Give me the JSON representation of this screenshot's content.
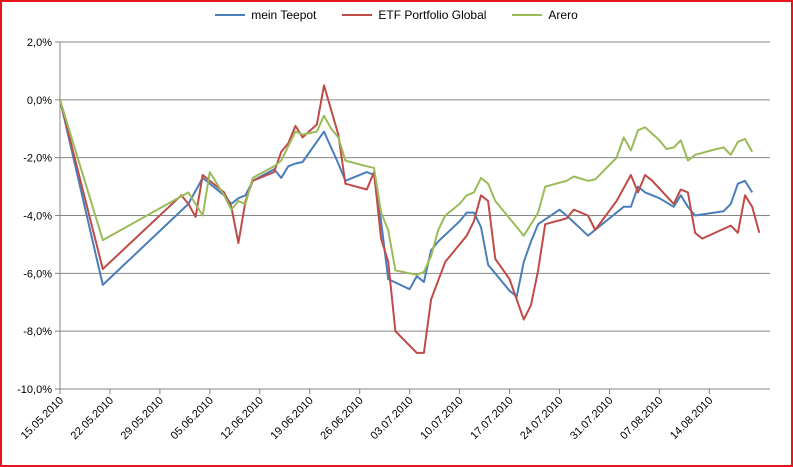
{
  "chart_data": {
    "type": "line",
    "title": "",
    "xlabel": "",
    "ylabel": "",
    "ylim": [
      -10,
      2
    ],
    "yticks": [
      {
        "v": 2,
        "label": "2,0%"
      },
      {
        "v": 0,
        "label": "0,0%"
      },
      {
        "v": -2,
        "label": "-2,0%"
      },
      {
        "v": -4,
        "label": "-4,0%"
      },
      {
        "v": -6,
        "label": "-6,0%"
      },
      {
        "v": -8,
        "label": "-8,0%"
      },
      {
        "v": -10,
        "label": "-10,0%"
      }
    ],
    "x_start": "15.05.2010",
    "x_end": "21.08.2010",
    "xticks": [
      "15.05.2010",
      "22.05.2010",
      "29.05.2010",
      "05.06.2010",
      "12.06.2010",
      "19.06.2010",
      "26.06.2010",
      "03.07.2010",
      "10.07.2010",
      "17.07.2010",
      "24.07.2010",
      "31.07.2010",
      "07.08.2010",
      "14.08.2010"
    ],
    "grid": "horizontal",
    "legend_position": "top",
    "series": [
      {
        "name": "mein Teepot",
        "color": "#4a7ebb",
        "points": [
          [
            "15.05.2010",
            0
          ],
          [
            "21.05.2010",
            -6.4
          ],
          [
            "02.06.2010",
            -3.6
          ],
          [
            "04.06.2010",
            -2.7
          ],
          [
            "07.06.2010",
            -3.3
          ],
          [
            "08.06.2010",
            -3.6
          ],
          [
            "09.06.2010",
            -3.4
          ],
          [
            "10.06.2010",
            -3.3
          ],
          [
            "11.06.2010",
            -2.8
          ],
          [
            "14.06.2010",
            -2.4
          ],
          [
            "15.06.2010",
            -2.7
          ],
          [
            "16.06.2010",
            -2.3
          ],
          [
            "17.06.2010",
            -2.2
          ],
          [
            "18.06.2010",
            -2.15
          ],
          [
            "21.06.2010",
            -1.1
          ],
          [
            "23.06.2010",
            -2.2
          ],
          [
            "24.06.2010",
            -2.8
          ],
          [
            "27.06.2010",
            -2.5
          ],
          [
            "28.06.2010",
            -2.6
          ],
          [
            "29.06.2010",
            -4.2
          ],
          [
            "30.06.2010",
            -6.2
          ],
          [
            "03.07.2010",
            -6.55
          ],
          [
            "04.07.2010",
            -6.1
          ],
          [
            "05.07.2010",
            -6.3
          ],
          [
            "06.07.2010",
            -5.2
          ],
          [
            "07.07.2010",
            -4.9
          ],
          [
            "10.07.2010",
            -4.2
          ],
          [
            "11.07.2010",
            -3.9
          ],
          [
            "12.07.2010",
            -3.9
          ],
          [
            "13.07.2010",
            -4.4
          ],
          [
            "14.07.2010",
            -5.7
          ],
          [
            "17.07.2010",
            -6.6
          ],
          [
            "18.07.2010",
            -6.8
          ],
          [
            "19.07.2010",
            -5.6
          ],
          [
            "20.07.2010",
            -4.9
          ],
          [
            "21.07.2010",
            -4.3
          ],
          [
            "24.07.2010",
            -3.8
          ],
          [
            "25.07.2010",
            -4.0
          ],
          [
            "28.07.2010",
            -4.7
          ],
          [
            "31.07.2010",
            -4.1
          ],
          [
            "02.08.2010",
            -3.7
          ],
          [
            "03.08.2010",
            -3.7
          ],
          [
            "04.08.2010",
            -3.0
          ],
          [
            "05.08.2010",
            -3.2
          ],
          [
            "07.08.2010",
            -3.4
          ],
          [
            "09.08.2010",
            -3.7
          ],
          [
            "10.08.2010",
            -3.3
          ],
          [
            "11.08.2010",
            -3.7
          ],
          [
            "12.08.2010",
            -4.0
          ],
          [
            "16.08.2010",
            -3.85
          ],
          [
            "17.08.2010",
            -3.6
          ],
          [
            "18.08.2010",
            -2.9
          ],
          [
            "19.08.2010",
            -2.8
          ],
          [
            "20.08.2010",
            -3.2
          ]
        ]
      },
      {
        "name": "ETF Portfolio Global",
        "color": "#be4b48",
        "points": [
          [
            "15.05.2010",
            0
          ],
          [
            "21.05.2010",
            -5.85
          ],
          [
            "01.06.2010",
            -3.3
          ],
          [
            "02.06.2010",
            -3.6
          ],
          [
            "03.06.2010",
            -4.05
          ],
          [
            "04.06.2010",
            -2.6
          ],
          [
            "07.06.2010",
            -3.2
          ],
          [
            "08.06.2010",
            -3.7
          ],
          [
            "09.06.2010",
            -4.95
          ],
          [
            "10.06.2010",
            -3.5
          ],
          [
            "11.06.2010",
            -2.8
          ],
          [
            "14.06.2010",
            -2.5
          ],
          [
            "15.06.2010",
            -1.8
          ],
          [
            "16.06.2010",
            -1.5
          ],
          [
            "17.06.2010",
            -0.9
          ],
          [
            "18.06.2010",
            -1.3
          ],
          [
            "20.06.2010",
            -0.85
          ],
          [
            "21.06.2010",
            0.5
          ],
          [
            "23.06.2010",
            -1.2
          ],
          [
            "24.06.2010",
            -2.9
          ],
          [
            "27.06.2010",
            -3.1
          ],
          [
            "28.06.2010",
            -2.5
          ],
          [
            "29.06.2010",
            -4.8
          ],
          [
            "30.06.2010",
            -5.6
          ],
          [
            "01.07.2010",
            -8.0
          ],
          [
            "04.07.2010",
            -8.75
          ],
          [
            "05.07.2010",
            -8.75
          ],
          [
            "06.07.2010",
            -6.9
          ],
          [
            "08.07.2010",
            -5.6
          ],
          [
            "10.07.2010",
            -5.0
          ],
          [
            "11.07.2010",
            -4.7
          ],
          [
            "12.07.2010",
            -4.2
          ],
          [
            "13.07.2010",
            -3.3
          ],
          [
            "14.07.2010",
            -3.5
          ],
          [
            "15.07.2010",
            -5.5
          ],
          [
            "17.07.2010",
            -6.2
          ],
          [
            "19.07.2010",
            -7.6
          ],
          [
            "20.07.2010",
            -7.1
          ],
          [
            "21.07.2010",
            -5.9
          ],
          [
            "22.07.2010",
            -4.3
          ],
          [
            "25.07.2010",
            -4.1
          ],
          [
            "26.07.2010",
            -3.8
          ],
          [
            "28.07.2010",
            -4.0
          ],
          [
            "29.07.2010",
            -4.5
          ],
          [
            "01.08.2010",
            -3.5
          ],
          [
            "03.08.2010",
            -2.6
          ],
          [
            "04.08.2010",
            -3.2
          ],
          [
            "05.08.2010",
            -2.6
          ],
          [
            "06.08.2010",
            -2.8
          ],
          [
            "09.08.2010",
            -3.6
          ],
          [
            "10.08.2010",
            -3.1
          ],
          [
            "11.08.2010",
            -3.2
          ],
          [
            "12.08.2010",
            -4.6
          ],
          [
            "13.08.2010",
            -4.8
          ],
          [
            "17.08.2010",
            -4.35
          ],
          [
            "18.08.2010",
            -4.6
          ],
          [
            "19.08.2010",
            -3.3
          ],
          [
            "20.08.2010",
            -3.7
          ],
          [
            "21.08.2010",
            -4.6
          ]
        ]
      },
      {
        "name": "Arero",
        "color": "#9bbb59",
        "points": [
          [
            "15.05.2010",
            0
          ],
          [
            "21.05.2010",
            -4.85
          ],
          [
            "02.06.2010",
            -3.2
          ],
          [
            "04.06.2010",
            -4.0
          ],
          [
            "05.06.2010",
            -2.5
          ],
          [
            "07.06.2010",
            -3.3
          ],
          [
            "08.06.2010",
            -3.8
          ],
          [
            "09.06.2010",
            -3.5
          ],
          [
            "10.06.2010",
            -3.6
          ],
          [
            "11.06.2010",
            -2.7
          ],
          [
            "14.06.2010",
            -2.3
          ],
          [
            "15.06.2010",
            -2.1
          ],
          [
            "16.06.2010",
            -1.6
          ],
          [
            "17.06.2010",
            -1.1
          ],
          [
            "18.06.2010",
            -1.2
          ],
          [
            "20.06.2010",
            -1.1
          ],
          [
            "21.06.2010",
            -0.55
          ],
          [
            "22.06.2010",
            -1.0
          ],
          [
            "23.06.2010",
            -1.3
          ],
          [
            "24.06.2010",
            -2.1
          ],
          [
            "27.06.2010",
            -2.3
          ],
          [
            "28.06.2010",
            -2.35
          ],
          [
            "29.06.2010",
            -3.9
          ],
          [
            "30.06.2010",
            -4.5
          ],
          [
            "01.07.2010",
            -5.9
          ],
          [
            "04.07.2010",
            -6.05
          ],
          [
            "05.07.2010",
            -5.95
          ],
          [
            "06.07.2010",
            -5.4
          ],
          [
            "07.07.2010",
            -4.5
          ],
          [
            "08.07.2010",
            -4.0
          ],
          [
            "10.07.2010",
            -3.6
          ],
          [
            "11.07.2010",
            -3.3
          ],
          [
            "12.07.2010",
            -3.2
          ],
          [
            "13.07.2010",
            -2.7
          ],
          [
            "14.07.2010",
            -2.9
          ],
          [
            "15.07.2010",
            -3.5
          ],
          [
            "19.07.2010",
            -4.7
          ],
          [
            "21.07.2010",
            -3.9
          ],
          [
            "22.07.2010",
            -3.0
          ],
          [
            "25.07.2010",
            -2.8
          ],
          [
            "26.07.2010",
            -2.65
          ],
          [
            "28.07.2010",
            -2.8
          ],
          [
            "29.07.2010",
            -2.75
          ],
          [
            "01.08.2010",
            -2.0
          ],
          [
            "02.08.2010",
            -1.3
          ],
          [
            "03.08.2010",
            -1.75
          ],
          [
            "04.08.2010",
            -1.05
          ],
          [
            "05.08.2010",
            -0.95
          ],
          [
            "07.08.2010",
            -1.4
          ],
          [
            "08.08.2010",
            -1.7
          ],
          [
            "09.08.2010",
            -1.65
          ],
          [
            "10.08.2010",
            -1.4
          ],
          [
            "11.08.2010",
            -2.1
          ],
          [
            "12.08.2010",
            -1.9
          ],
          [
            "15.08.2010",
            -1.7
          ],
          [
            "16.08.2010",
            -1.65
          ],
          [
            "17.08.2010",
            -1.9
          ],
          [
            "18.08.2010",
            -1.45
          ],
          [
            "19.08.2010",
            -1.35
          ],
          [
            "20.08.2010",
            -1.8
          ]
        ]
      }
    ]
  }
}
